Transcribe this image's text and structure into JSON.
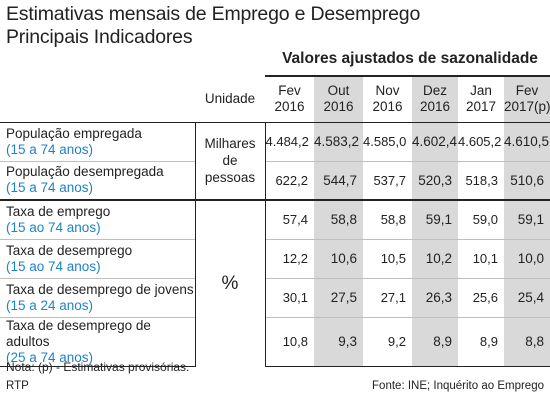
{
  "title": {
    "line1": "Estimativas mensais de Emprego e Desemprego",
    "line2": "Principais Indicadores"
  },
  "subtitle": "Valores ajustados de sazonalidade",
  "unit_header": "Unidade",
  "columns": [
    {
      "line1": "Fev",
      "line2": "2016",
      "highlight": false
    },
    {
      "line1": "Out",
      "line2": "2016",
      "highlight": true
    },
    {
      "line1": "Nov",
      "line2": "2016",
      "highlight": false
    },
    {
      "line1": "Dez",
      "line2": "2016",
      "highlight": true
    },
    {
      "line1": "Jan",
      "line2": "2017",
      "highlight": false
    },
    {
      "line1": "Fev",
      "line2": "2017(p)",
      "highlight": true
    }
  ],
  "units": {
    "group1": [
      "Milhares",
      "de pessoas"
    ],
    "group2": "%"
  },
  "rows": [
    {
      "label": "População empregada",
      "sublabel": "(15 a 74 anos)",
      "values": [
        "4.484,2",
        "4.583,2",
        "4.585,0",
        "4.602,4",
        "4.605,2",
        "4.610,5"
      ]
    },
    {
      "label": "População desempregada",
      "sublabel": "(15 a 74 anos)",
      "values": [
        "622,2",
        "544,7",
        "537,7",
        "520,3",
        "518,3",
        "510,6"
      ]
    },
    {
      "label": "Taxa de emprego",
      "sublabel": "(15 ao 74 anos)",
      "values": [
        "57,4",
        "58,8",
        "58,8",
        "59,1",
        "59,0",
        "59,1"
      ]
    },
    {
      "label": "Taxa de desemprego",
      "sublabel": "(15 ao 74 anos)",
      "values": [
        "12,2",
        "10,6",
        "10,5",
        "10,2",
        "10,1",
        "10,0"
      ]
    },
    {
      "label": "Taxa de desemprego de jovens",
      "sublabel": "(15 a 24 anos)",
      "values": [
        "30,1",
        "27,5",
        "27,1",
        "26,3",
        "25,6",
        "25,4"
      ]
    },
    {
      "label": "Taxa de desemprego de adultos",
      "sublabel": "(25 a 74 anos)",
      "values": [
        "10,8",
        "9,3",
        "9,2",
        "8,9",
        "8,9",
        "8,8"
      ]
    }
  ],
  "footer": {
    "note": "Nota: (p) - Estimativas provisórias.",
    "credit": "RTP",
    "source": "Fonte: INE; Inquérito ao Emprego"
  }
}
